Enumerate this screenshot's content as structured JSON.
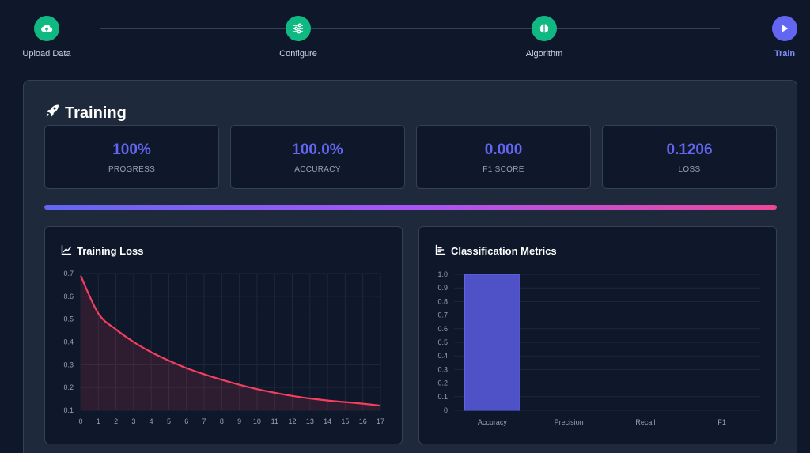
{
  "stepper": {
    "steps": [
      {
        "label": "Upload Data",
        "icon": "cloud-upload-icon",
        "state": "done"
      },
      {
        "label": "Configure",
        "icon": "sliders-icon",
        "state": "done"
      },
      {
        "label": "Algorithm",
        "icon": "brain-icon",
        "state": "done"
      },
      {
        "label": "Train",
        "icon": "play-icon",
        "state": "active"
      }
    ]
  },
  "training": {
    "title": "Training",
    "title_icon": "rocket-icon",
    "stats": [
      {
        "value": "100%",
        "label": "PROGRESS"
      },
      {
        "value": "100.0%",
        "label": "ACCURACY"
      },
      {
        "value": "0.000",
        "label": "F1 SCORE"
      },
      {
        "value": "0.1206",
        "label": "LOSS"
      }
    ],
    "progress_fraction": 1.0
  },
  "colors": {
    "accent": "#6366f1",
    "success": "#10b981",
    "loss_line": "#f43f5e",
    "bar": "#4f51c6"
  },
  "chart_data": [
    {
      "type": "area",
      "title": "Training Loss",
      "title_icon": "line-chart-icon",
      "x": [
        0,
        1,
        2,
        3,
        4,
        5,
        6,
        7,
        8,
        9,
        10,
        11,
        12,
        13,
        14,
        15,
        16,
        17
      ],
      "series": [
        {
          "values": [
            0.69,
            0.525,
            0.455,
            0.4,
            0.355,
            0.318,
            0.285,
            0.258,
            0.234,
            0.212,
            0.193,
            0.177,
            0.163,
            0.152,
            0.143,
            0.136,
            0.129,
            0.1206
          ]
        }
      ],
      "ylim": [
        0.1,
        0.7
      ],
      "yticks": [
        "0.7",
        "0.6",
        "0.5",
        "0.4",
        "0.3",
        "0.2",
        "0.1"
      ],
      "xticks": [
        "0",
        "1",
        "2",
        "3",
        "4",
        "5",
        "6",
        "7",
        "8",
        "9",
        "10",
        "11",
        "12",
        "13",
        "14",
        "15",
        "16",
        "17"
      ],
      "grid": true
    },
    {
      "type": "bar",
      "title": "Classification Metrics",
      "title_icon": "bar-chart-icon",
      "categories": [
        "Accuracy",
        "Precision",
        "Recall",
        "F1"
      ],
      "values": [
        1.0,
        0,
        0,
        0
      ],
      "ylim": [
        0,
        1.0
      ],
      "yticks": [
        "1.0",
        "0.9",
        "0.8",
        "0.7",
        "0.6",
        "0.5",
        "0.4",
        "0.3",
        "0.2",
        "0.1",
        "0"
      ],
      "grid": true
    }
  ]
}
